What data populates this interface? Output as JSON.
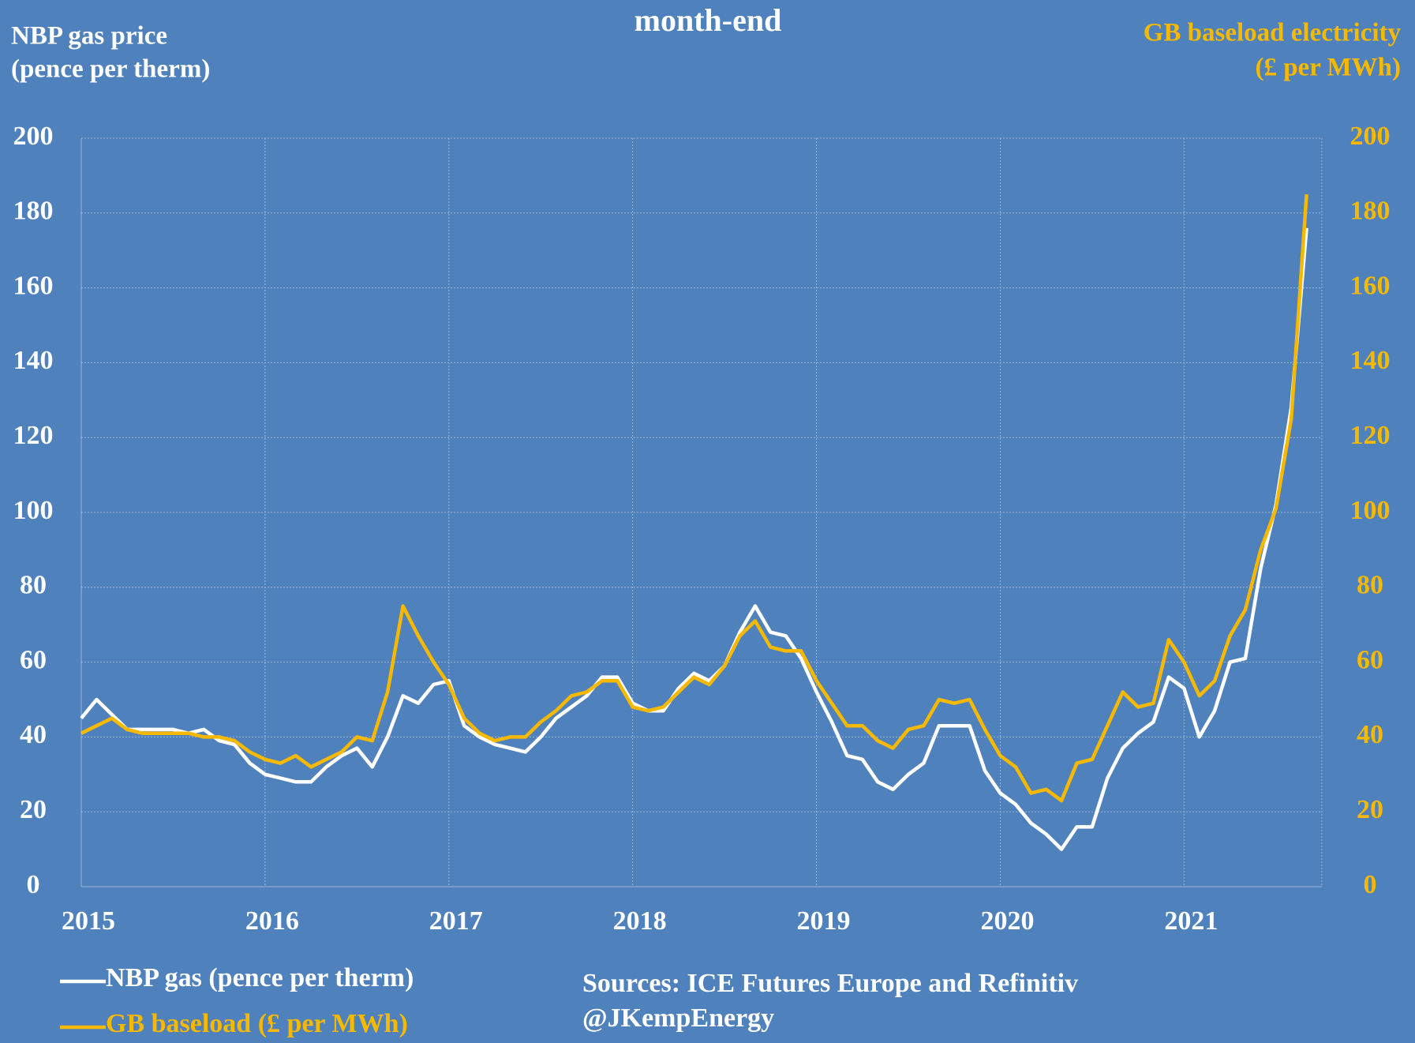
{
  "chart_data": {
    "type": "line",
    "title": "month-end",
    "y_label": [
      "NBP gas price",
      "(pence per therm)"
    ],
    "y2_label": [
      "GB baseload electricity",
      "(£ per MWh)"
    ],
    "sources": [
      "Sources: ICE Futures Europe and Refinitiv",
      "@JKempEnergy"
    ],
    "x": [
      "2015-01",
      "2015-02",
      "2015-03",
      "2015-04",
      "2015-05",
      "2015-06",
      "2015-07",
      "2015-08",
      "2015-09",
      "2015-10",
      "2015-11",
      "2015-12",
      "2016-01",
      "2016-02",
      "2016-03",
      "2016-04",
      "2016-05",
      "2016-06",
      "2016-07",
      "2016-08",
      "2016-09",
      "2016-10",
      "2016-11",
      "2016-12",
      "2017-01",
      "2017-02",
      "2017-03",
      "2017-04",
      "2017-05",
      "2017-06",
      "2017-07",
      "2017-08",
      "2017-09",
      "2017-10",
      "2017-11",
      "2017-12",
      "2018-01",
      "2018-02",
      "2018-03",
      "2018-04",
      "2018-05",
      "2018-06",
      "2018-07",
      "2018-08",
      "2018-09",
      "2018-10",
      "2018-11",
      "2018-12",
      "2019-01",
      "2019-02",
      "2019-03",
      "2019-04",
      "2019-05",
      "2019-06",
      "2019-07",
      "2019-08",
      "2019-09",
      "2019-10",
      "2019-11",
      "2019-12",
      "2020-01",
      "2020-02",
      "2020-03",
      "2020-04",
      "2020-05",
      "2020-06",
      "2020-07",
      "2020-08",
      "2020-09",
      "2020-10",
      "2020-11",
      "2020-12",
      "2021-01",
      "2021-02",
      "2021-03",
      "2021-04",
      "2021-05",
      "2021-06",
      "2021-07",
      "2021-08",
      "2021-09"
    ],
    "xlim": [
      "2015-01",
      "2021-10"
    ],
    "xticks": [
      {
        "value": "2015-01",
        "label": "2015"
      },
      {
        "value": "2016-01",
        "label": "2016"
      },
      {
        "value": "2017-01",
        "label": "2017"
      },
      {
        "value": "2018-01",
        "label": "2018"
      },
      {
        "value": "2019-01",
        "label": "2019"
      },
      {
        "value": "2020-01",
        "label": "2020"
      },
      {
        "value": "2021-01",
        "label": "2021"
      }
    ],
    "ylim": [
      0,
      200
    ],
    "yticks": [
      0,
      20,
      40,
      60,
      80,
      100,
      120,
      140,
      160,
      180,
      200
    ],
    "y2lim": [
      0,
      200
    ],
    "y2ticks": [
      0,
      20,
      40,
      60,
      80,
      100,
      120,
      140,
      160,
      180,
      200
    ],
    "y2_color": "#f7b900",
    "grid": true,
    "series": [
      {
        "name": "NBP gas (pence per therm)",
        "color": "#ffffff",
        "axis": "y",
        "values": [
          45,
          50,
          46,
          42,
          42,
          42,
          42,
          41,
          42,
          39,
          38,
          33,
          30,
          29,
          28,
          28,
          32,
          35,
          37,
          32,
          40,
          51,
          49,
          54,
          55,
          43,
          40,
          38,
          37,
          36,
          40,
          45,
          48,
          51,
          56,
          56,
          49,
          47,
          47,
          53,
          57,
          55,
          59,
          68,
          75,
          68,
          67,
          61,
          52,
          44,
          35,
          34,
          28,
          26,
          30,
          33,
          43,
          43,
          43,
          31,
          25,
          22,
          17,
          14,
          10,
          16,
          16,
          29,
          37,
          41,
          44,
          56,
          53,
          40,
          47,
          60,
          61,
          85,
          102,
          128,
          176
        ]
      },
      {
        "name": "GB baseload (£ per MWh)",
        "color": "#f7b900",
        "axis": "y2",
        "values": [
          41,
          43,
          45,
          42,
          41,
          41,
          41,
          41,
          40,
          40,
          39,
          36,
          34,
          33,
          35,
          32,
          34,
          36,
          40,
          39,
          52,
          75,
          67,
          60,
          54,
          45,
          41,
          39,
          40,
          40,
          44,
          47,
          51,
          52,
          55,
          55,
          48,
          47,
          48,
          52,
          56,
          54,
          59,
          67,
          71,
          64,
          63,
          63,
          55,
          49,
          43,
          43,
          39,
          37,
          42,
          43,
          50,
          49,
          50,
          42,
          35,
          32,
          25,
          26,
          23,
          33,
          34,
          43,
          52,
          48,
          49,
          66,
          60,
          51,
          55,
          67,
          74,
          90,
          101,
          125,
          185
        ]
      }
    ]
  }
}
